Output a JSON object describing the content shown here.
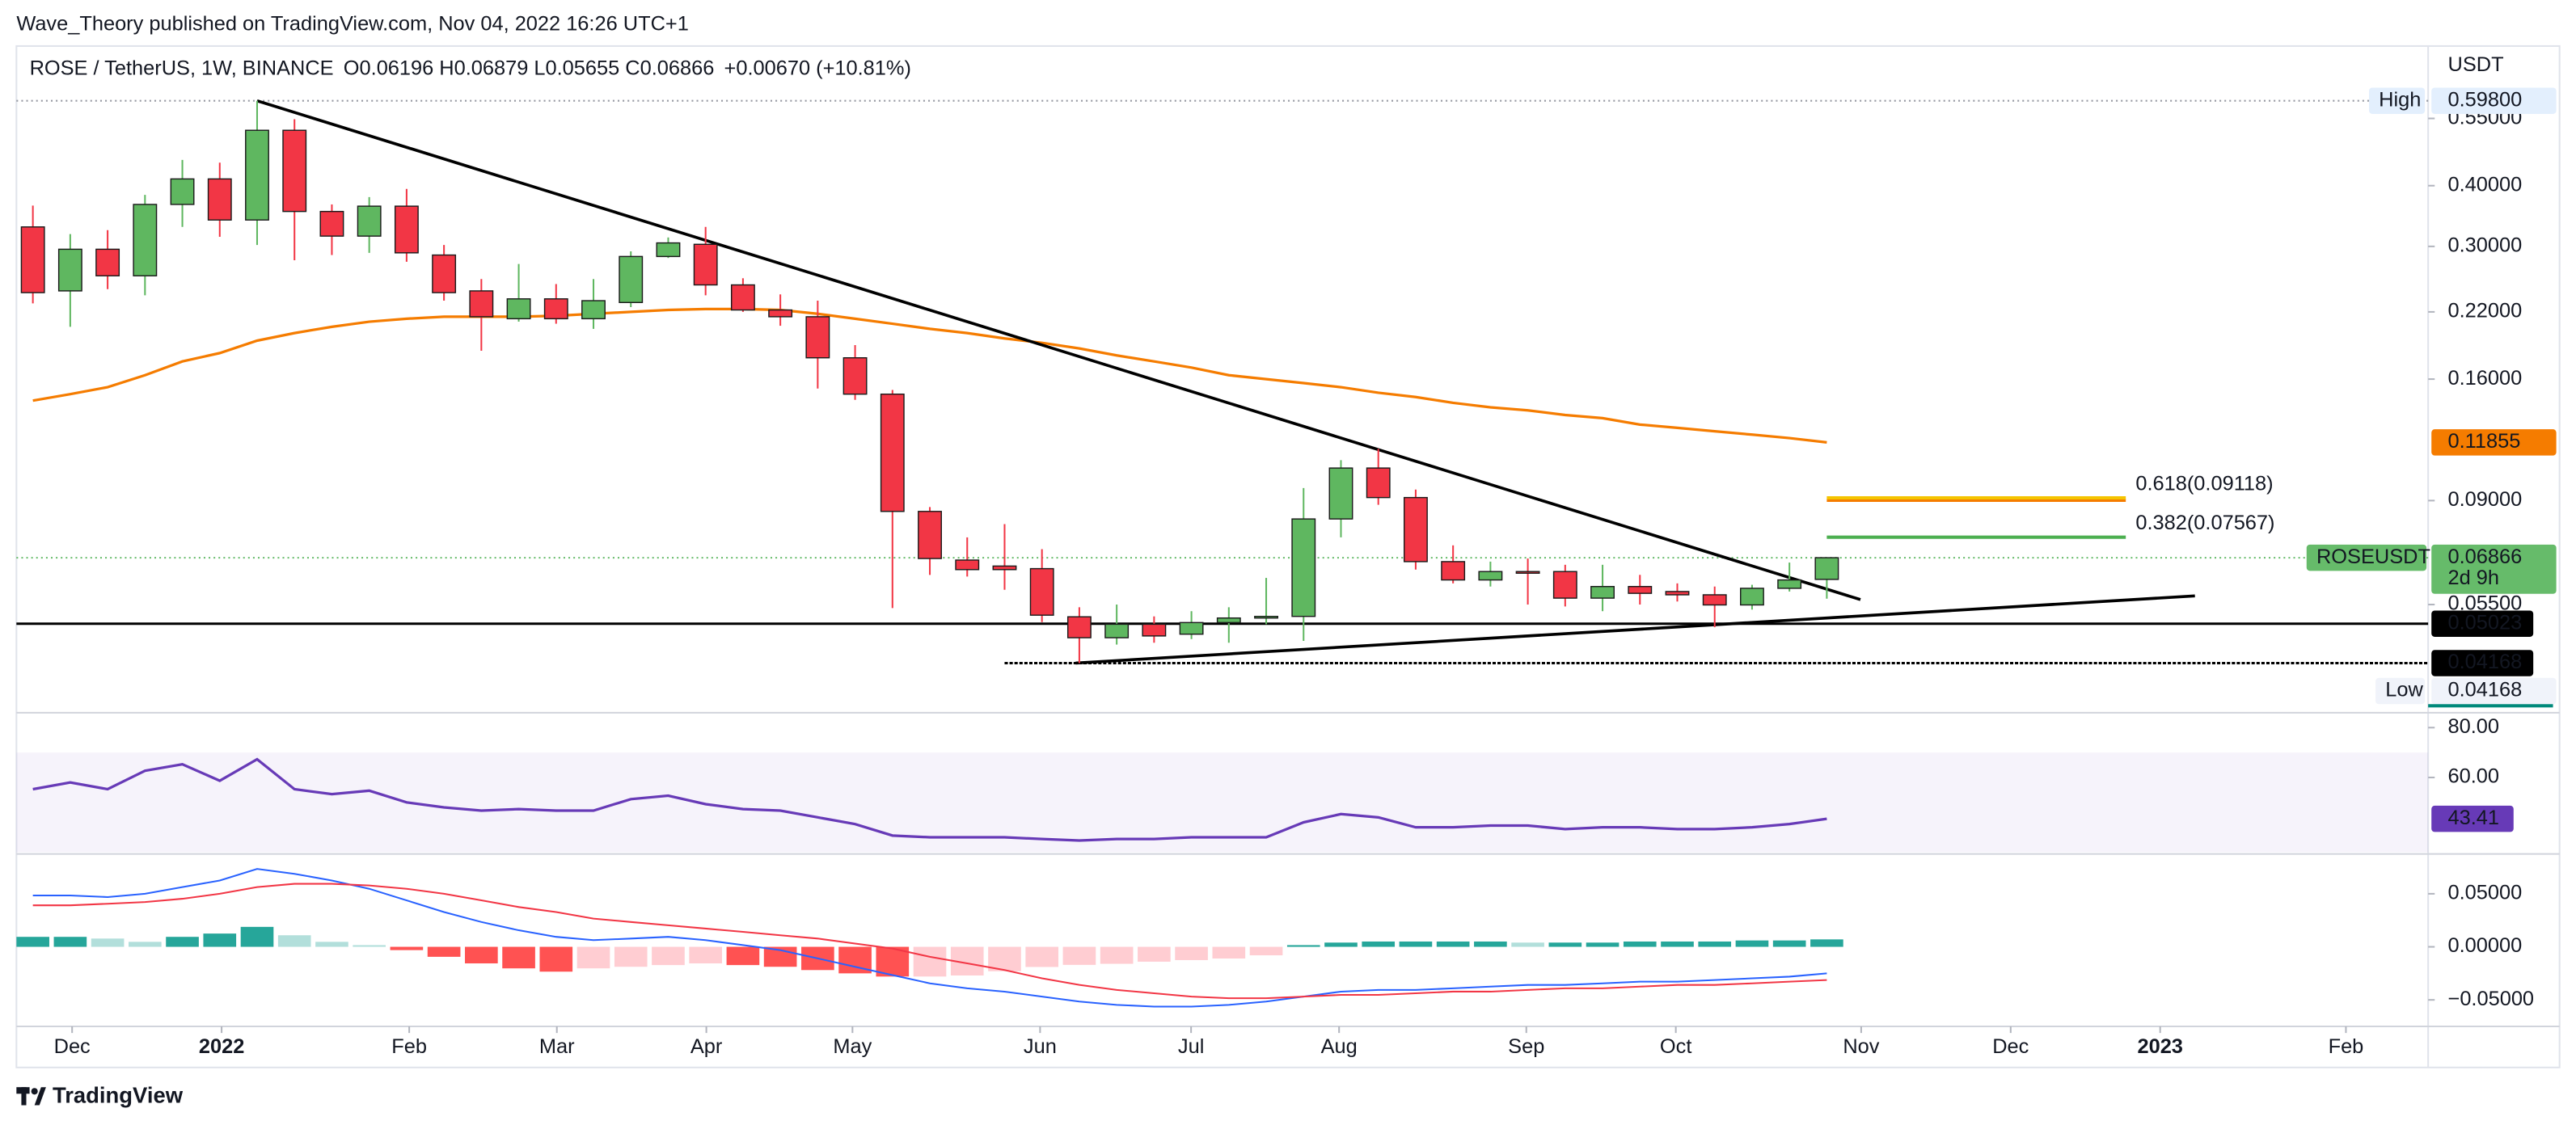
{
  "header": {
    "published": "Wave_Theory published on TradingView.com, Nov 04, 2022 16:26 UTC+1",
    "footer": "TradingView"
  },
  "chart_data": {
    "type": "candlestick",
    "legend": {
      "symbol": "ROSE / TetherUS, 1W, BINANCE",
      "ohlc": "O0.06196 H0.06879 L0.05655 C0.06866",
      "change": "+0.00670 (+10.81%)"
    },
    "currency": "USDT",
    "up_color": "#5fb760",
    "down_color": "#f23645",
    "log_scale": true,
    "ylim": [
      0.0332,
      0.775
    ],
    "yticks": [
      {
        "value": 0.55,
        "label": "0.55000"
      },
      {
        "value": 0.4,
        "label": "0.40000"
      },
      {
        "value": 0.3,
        "label": "0.30000"
      },
      {
        "value": 0.22,
        "label": "0.22000"
      },
      {
        "value": 0.16,
        "label": "0.16000"
      },
      {
        "value": 0.09,
        "label": "0.09000"
      },
      {
        "value": 0.055,
        "label": "0.05500"
      }
    ],
    "xlim": [
      -0.44,
      64.09
    ],
    "xticks": [
      {
        "value": 1.05,
        "label": "Dec"
      },
      {
        "value": 5.05,
        "label": "2022"
      },
      {
        "value": 10.07,
        "label": "Feb"
      },
      {
        "value": 14.02,
        "label": "Mar"
      },
      {
        "value": 18.02,
        "label": "Apr"
      },
      {
        "value": 21.93,
        "label": "May"
      },
      {
        "value": 26.95,
        "label": "Jun"
      },
      {
        "value": 30.99,
        "label": "Jul"
      },
      {
        "value": 34.95,
        "label": "Aug"
      },
      {
        "value": 39.96,
        "label": "Sep"
      },
      {
        "value": 43.96,
        "label": "Oct"
      },
      {
        "value": 48.92,
        "label": "Nov"
      },
      {
        "value": 52.92,
        "label": "Dec"
      },
      {
        "value": 56.92,
        "label": "2023"
      },
      {
        "value": 61.89,
        "label": "Feb"
      }
    ],
    "open": [
      0.329,
      0.243,
      0.296,
      0.261,
      0.366,
      0.413,
      0.34,
      0.52,
      0.354,
      0.315,
      0.363,
      0.288,
      0.243,
      0.213,
      0.234,
      0.213,
      0.23,
      0.286,
      0.303,
      0.25,
      0.222,
      0.215,
      0.177,
      0.149,
      0.0855,
      0.0679,
      0.066,
      0.0652,
      0.0519,
      0.047,
      0.0501,
      0.0478,
      0.0505,
      0.0516,
      0.052,
      0.0825,
      0.105,
      0.0913,
      0.0674,
      0.0618,
      0.0643,
      0.0643,
      0.0567,
      0.0599,
      0.0585,
      0.0576,
      0.0549,
      0.0594,
      0.06196
    ],
    "high": [
      0.364,
      0.318,
      0.324,
      0.383,
      0.452,
      0.446,
      0.598,
      0.548,
      0.366,
      0.379,
      0.394,
      0.302,
      0.257,
      0.276,
      0.251,
      0.257,
      0.293,
      0.313,
      0.329,
      0.258,
      0.239,
      0.232,
      0.188,
      0.152,
      0.0873,
      0.0756,
      0.0805,
      0.0715,
      0.0543,
      0.055,
      0.052,
      0.0533,
      0.0543,
      0.0624,
      0.0955,
      0.109,
      0.115,
      0.0948,
      0.0728,
      0.0674,
      0.0684,
      0.0664,
      0.0664,
      0.0633,
      0.0608,
      0.0599,
      0.0604,
      0.0671,
      0.06879
    ],
    "low": [
      0.229,
      0.205,
      0.245,
      0.238,
      0.329,
      0.314,
      0.302,
      0.281,
      0.288,
      0.291,
      0.279,
      0.232,
      0.183,
      0.21,
      0.208,
      0.203,
      0.225,
      0.284,
      0.238,
      0.22,
      0.206,
      0.153,
      0.145,
      0.0541,
      0.0633,
      0.0628,
      0.059,
      0.0506,
      0.04168,
      0.0455,
      0.0459,
      0.0467,
      0.0459,
      0.0501,
      0.0463,
      0.0756,
      0.0882,
      0.0649,
      0.0608,
      0.0599,
      0.055,
      0.0545,
      0.0533,
      0.055,
      0.0558,
      0.0494,
      0.0537,
      0.0585,
      0.05655
    ],
    "close": [
      0.241,
      0.296,
      0.261,
      0.366,
      0.413,
      0.34,
      0.52,
      0.354,
      0.315,
      0.363,
      0.291,
      0.241,
      0.215,
      0.234,
      0.213,
      0.232,
      0.286,
      0.305,
      0.25,
      0.222,
      0.215,
      0.177,
      0.149,
      0.0855,
      0.0684,
      0.0649,
      0.0649,
      0.0523,
      0.047,
      0.0501,
      0.0474,
      0.0505,
      0.0516,
      0.052,
      0.0825,
      0.105,
      0.0913,
      0.0674,
      0.0618,
      0.0643,
      0.064,
      0.0567,
      0.0599,
      0.058,
      0.0576,
      0.0549,
      0.0594,
      0.0618,
      0.06866
    ],
    "ma": {
      "color": "#f57c00",
      "values": [
        0.1445,
        0.149,
        0.154,
        0.163,
        0.174,
        0.181,
        0.192,
        0.199,
        0.205,
        0.21,
        0.213,
        0.215,
        0.215,
        0.215,
        0.216,
        0.218,
        0.22,
        0.222,
        0.223,
        0.223,
        0.222,
        0.218,
        0.213,
        0.208,
        0.203,
        0.199,
        0.194,
        0.19,
        0.185,
        0.179,
        0.174,
        0.169,
        0.163,
        0.16,
        0.157,
        0.154,
        0.15,
        0.147,
        0.143,
        0.14,
        0.138,
        0.135,
        0.133,
        0.129,
        0.127,
        0.125,
        0.123,
        0.121,
        0.11855
      ]
    },
    "trendlines": [
      {
        "color": "#000000",
        "points": [
          [
            6,
            0.598
          ],
          [
            48.9,
            0.0563
          ]
        ]
      },
      {
        "color": "#000000",
        "points": [
          [
            27.9,
            0.04168
          ],
          [
            57.85,
            0.0573
          ]
        ]
      }
    ],
    "levels": [
      {
        "value": 0.05023,
        "line_style": "solid"
      },
      {
        "value": 0.04168,
        "from": 26,
        "line_style": "dotted"
      }
    ],
    "fib": {
      "from": 48,
      "to": 56,
      "lines": [
        {
          "label": "0.618(0.09118)",
          "value": 0.09118,
          "color": "#f5c400"
        },
        {
          "label": "0.382(0.07567)",
          "value": 0.07567,
          "color": "#4caf50"
        }
      ]
    },
    "high_label": {
      "name": "High",
      "value": 0.598,
      "label": "0.59800"
    },
    "low_label": {
      "name": "Low",
      "value": 0.04168,
      "label": "0.04168"
    },
    "last": {
      "name": "ROSEUSDT",
      "countdown": "2d 9h",
      "color": "#66bb6a"
    },
    "rsi": {
      "color": "#673ab7",
      "ylim": [
        29.3,
        85.3
      ],
      "band": [
        30,
        70
      ],
      "yticks": [
        {
          "value": 60,
          "label": "60.00"
        },
        {
          "value": 80,
          "label": "80.00"
        }
      ],
      "values": [
        55.3,
        58.0,
        55.3,
        62.7,
        65.3,
        58.7,
        67.3,
        55.3,
        53.3,
        54.7,
        50.0,
        48.0,
        46.7,
        47.3,
        46.7,
        46.7,
        51.3,
        52.7,
        49.3,
        47.3,
        46.7,
        44.0,
        41.3,
        36.7,
        36.0,
        36.0,
        36.0,
        35.3,
        34.7,
        35.3,
        35.3,
        36.0,
        36.0,
        36.0,
        42.0,
        45.3,
        44.0,
        40.0,
        40.0,
        40.7,
        40.7,
        39.3,
        40.0,
        40.0,
        39.3,
        39.3,
        40.0,
        41.3,
        43.41
      ]
    },
    "macd": {
      "ylim": [
        -0.075,
        0.0875
      ],
      "yticks": [
        {
          "value": 0.05,
          "label": "0.05000"
        },
        {
          "value": 0,
          "label": "0.00000"
        },
        {
          "value": -0.05,
          "label": "−0.05000"
        }
      ],
      "macd": {
        "color": "#2962ff",
        "values": [
          0.0484,
          0.0484,
          0.0469,
          0.05,
          0.0563,
          0.0625,
          0.0734,
          0.0688,
          0.0625,
          0.0547,
          0.0438,
          0.0328,
          0.0234,
          0.0156,
          0.0094,
          0.0063,
          0.0078,
          0.0094,
          0.0063,
          0.0016,
          -0.0031,
          -0.0109,
          -0.0188,
          -0.0266,
          -0.0344,
          -0.0391,
          -0.0422,
          -0.0469,
          -0.0516,
          -0.0547,
          -0.0563,
          -0.0563,
          -0.0547,
          -0.0516,
          -0.0469,
          -0.0422,
          -0.0406,
          -0.0406,
          -0.0391,
          -0.0375,
          -0.0359,
          -0.0359,
          -0.0344,
          -0.0328,
          -0.0328,
          -0.0313,
          -0.0297,
          -0.0281,
          -0.025
        ]
      },
      "signal": {
        "color": "#f23645",
        "values": [
          0.0391,
          0.0391,
          0.0406,
          0.0422,
          0.0453,
          0.05,
          0.0563,
          0.0594,
          0.0594,
          0.0578,
          0.0547,
          0.05,
          0.0438,
          0.0375,
          0.0328,
          0.0266,
          0.0234,
          0.0203,
          0.0172,
          0.0141,
          0.0109,
          0.0078,
          0.0031,
          -0.0016,
          -0.0094,
          -0.0156,
          -0.0219,
          -0.0297,
          -0.0359,
          -0.0406,
          -0.0438,
          -0.0469,
          -0.0484,
          -0.0484,
          -0.0469,
          -0.0453,
          -0.0453,
          -0.0438,
          -0.0422,
          -0.0422,
          -0.0406,
          -0.0391,
          -0.0391,
          -0.0375,
          -0.0359,
          -0.0359,
          -0.0344,
          -0.0328,
          -0.0313
        ]
      },
      "histogram": {
        "colors": [
          "#26a69a",
          "#b2dfdb",
          "#ff5252",
          "#ffcdd2"
        ],
        "values": [
          0.0094,
          0.0094,
          0.0078,
          0.0047,
          0.0094,
          0.0125,
          0.0188,
          0.0109,
          0.0047,
          0.0016,
          -0.0031,
          -0.0094,
          -0.0156,
          -0.0203,
          -0.0234,
          -0.0203,
          -0.0188,
          -0.0172,
          -0.0156,
          -0.0172,
          -0.0188,
          -0.0219,
          -0.025,
          -0.028,
          -0.028,
          -0.027,
          -0.023,
          -0.019,
          -0.017,
          -0.016,
          -0.014,
          -0.0125,
          -0.011,
          -0.008,
          0.0016,
          0.004,
          0.005,
          0.005,
          0.005,
          0.005,
          0.004,
          0.004,
          0.004,
          0.005,
          0.005,
          0.005,
          0.006,
          0.006,
          0.007
        ]
      }
    }
  }
}
